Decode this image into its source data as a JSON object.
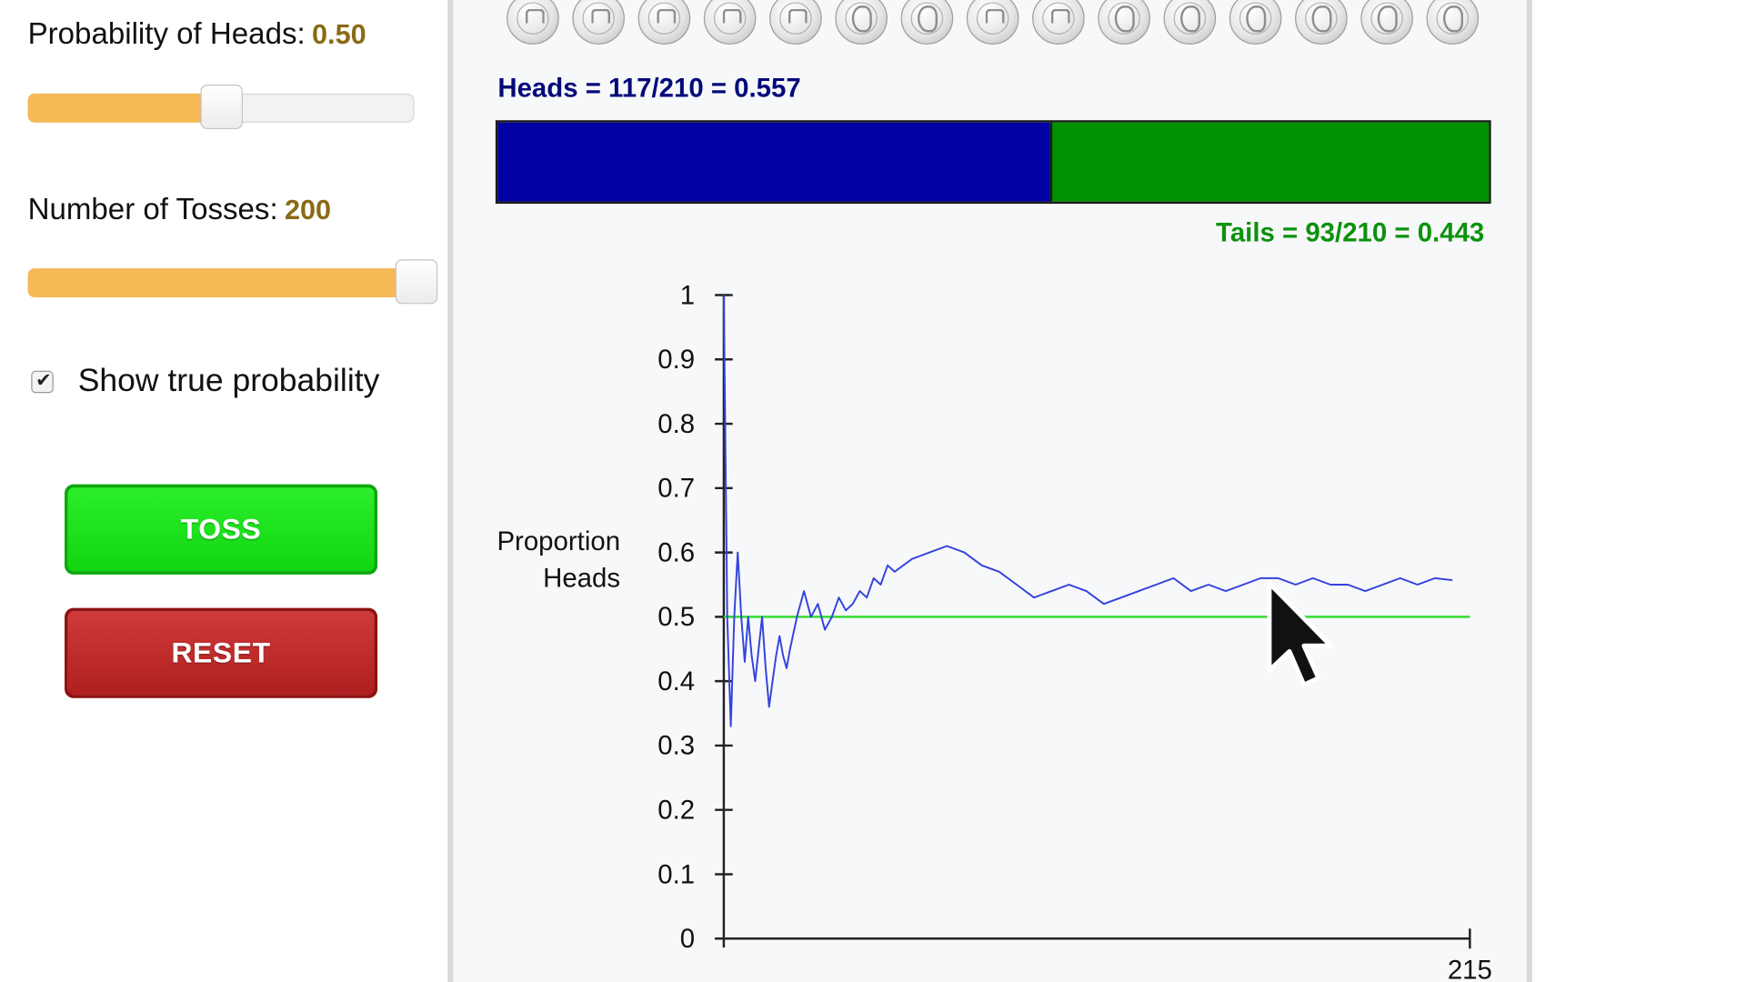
{
  "controls": {
    "prob_label": "Probability of Heads:",
    "prob_value": "0.50",
    "prob_fraction": 0.5,
    "tosses_label": "Number of Tosses:",
    "tosses_value": "200",
    "tosses_fraction": 1.0,
    "show_true_label": "Show true probability",
    "show_true_checked": true,
    "checkmark": "✔",
    "toss_button": "TOSS",
    "reset_button": "RESET"
  },
  "coins": [
    "heads",
    "heads",
    "heads",
    "heads",
    "heads",
    "tails",
    "tails",
    "heads",
    "heads",
    "tails",
    "tails",
    "tails",
    "tails",
    "tails",
    "tails"
  ],
  "counts": {
    "heads_text": "Heads = 117/210 = 0.557",
    "tails_text": "Tails = 93/210 = 0.443",
    "heads_fraction": 0.557,
    "heads_color": "#0000a3",
    "tails_color": "#009200"
  },
  "chart_data": {
    "type": "line",
    "title": "",
    "ylabel_lines": [
      "Proportion",
      "Heads"
    ],
    "xlabel": "",
    "x_tick_label": "215",
    "xlim": [
      1,
      215
    ],
    "ylim": [
      0,
      1
    ],
    "y_ticks": [
      "0",
      "0.1",
      "0.2",
      "0.3",
      "0.4",
      "0.5",
      "0.6",
      "0.7",
      "0.8",
      "0.9",
      "1"
    ],
    "true_probability": 0.5,
    "true_line_color": "#33dd33",
    "series_color": "#3344dd",
    "series": [
      {
        "x": [
          1,
          2,
          3,
          4,
          5,
          6,
          7,
          8,
          9,
          10,
          11,
          12,
          13,
          14,
          15,
          16,
          17,
          18,
          19,
          20,
          22,
          24,
          26,
          28,
          30,
          32,
          34,
          36,
          38,
          40,
          42,
          44,
          46,
          48,
          50,
          55,
          60,
          65,
          70,
          75,
          80,
          85,
          90,
          95,
          100,
          105,
          110,
          115,
          120,
          125,
          130,
          135,
          140,
          145,
          150,
          155,
          160,
          165,
          170,
          175,
          180,
          185,
          190,
          195,
          200,
          205,
          210
        ],
        "y": [
          1.0,
          0.5,
          0.33,
          0.5,
          0.6,
          0.5,
          0.43,
          0.5,
          0.44,
          0.4,
          0.45,
          0.5,
          0.42,
          0.36,
          0.4,
          0.44,
          0.47,
          0.44,
          0.42,
          0.45,
          0.5,
          0.54,
          0.5,
          0.52,
          0.48,
          0.5,
          0.53,
          0.51,
          0.52,
          0.54,
          0.53,
          0.56,
          0.55,
          0.58,
          0.57,
          0.59,
          0.6,
          0.61,
          0.6,
          0.58,
          0.57,
          0.55,
          0.53,
          0.54,
          0.55,
          0.54,
          0.52,
          0.53,
          0.54,
          0.55,
          0.56,
          0.54,
          0.55,
          0.54,
          0.55,
          0.56,
          0.56,
          0.55,
          0.56,
          0.55,
          0.55,
          0.54,
          0.55,
          0.56,
          0.55,
          0.56,
          0.557
        ]
      }
    ]
  }
}
